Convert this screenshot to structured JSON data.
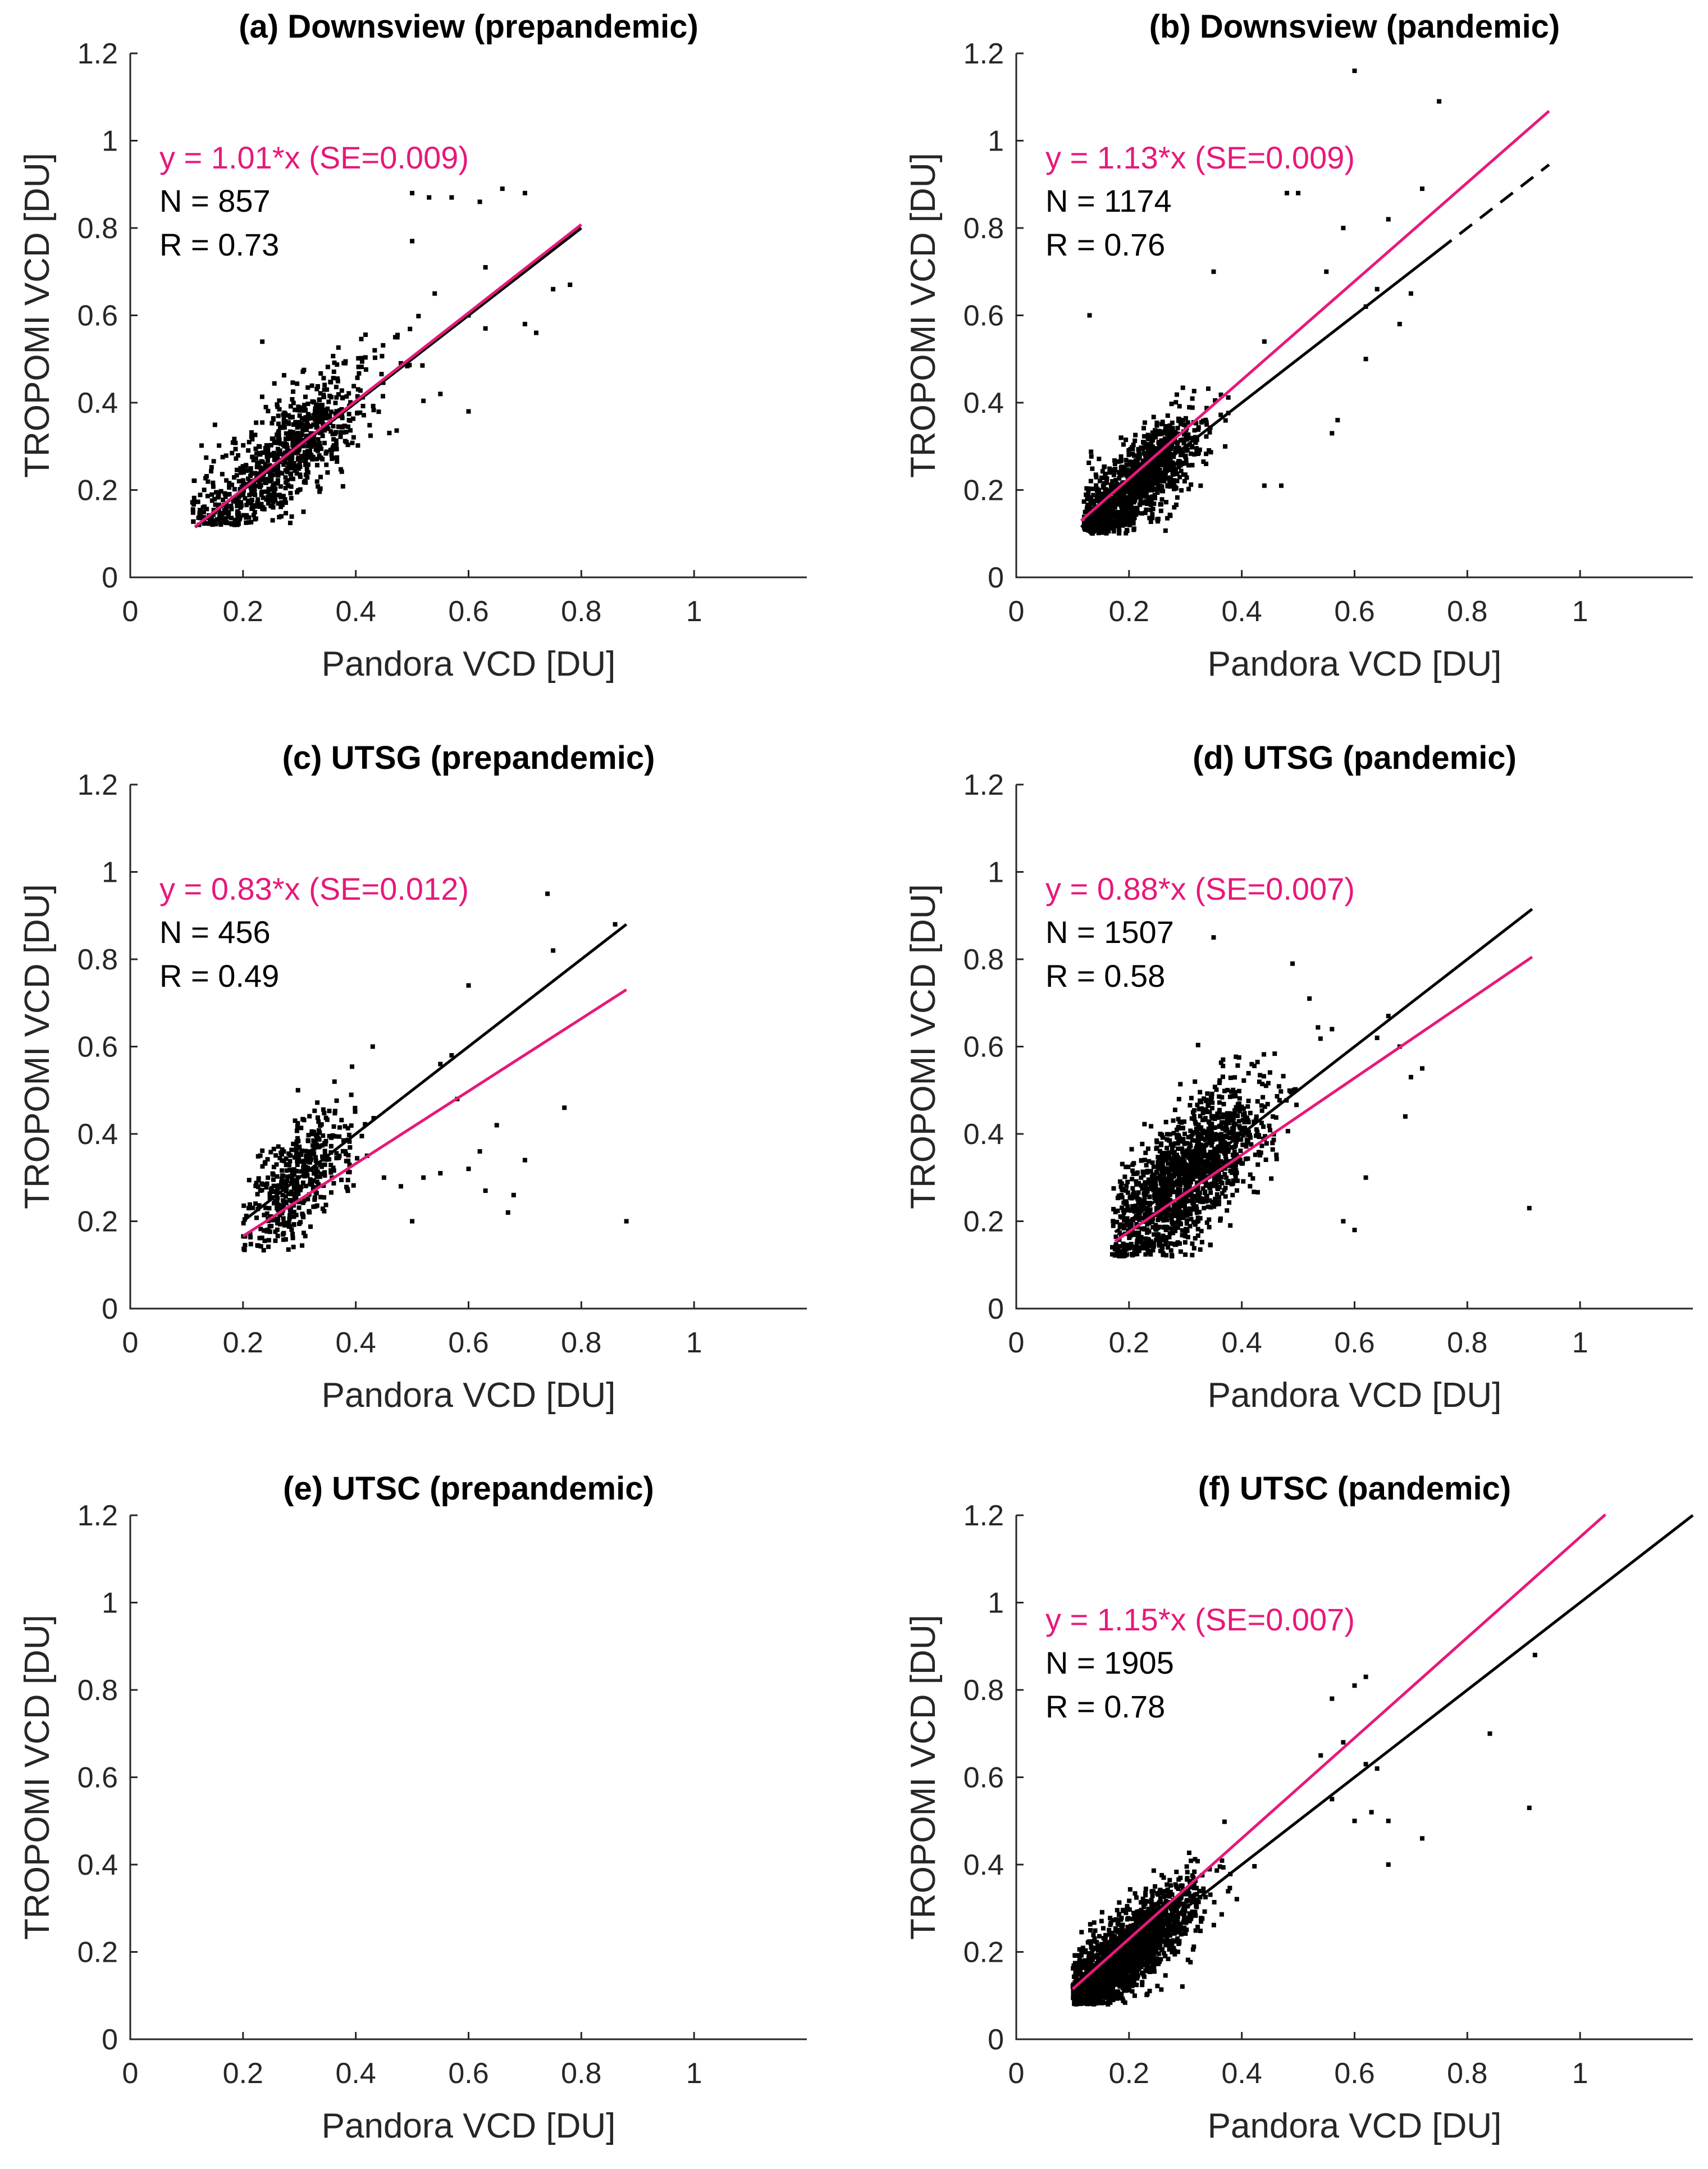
{
  "colors": {
    "fit": "#e6197a",
    "ref": "#000000",
    "points": "#000000",
    "axis": "#262626"
  },
  "chart_data": [
    {
      "type": "scatter",
      "title": "(a) Downsview (prepandemic)",
      "xlabel": "Pandora VCD [DU]",
      "ylabel": "TROPOMI VCD [DU]",
      "xlim": [
        0,
        1.2
      ],
      "ylim": [
        0,
        1.2
      ],
      "xticks": [
        0,
        0.2,
        0.4,
        0.6,
        0.8,
        1
      ],
      "xtick_labels": [
        "0",
        "0.2",
        "0.4",
        "0.6",
        "0.8",
        "1"
      ],
      "yticks": [
        0,
        0.2,
        0.4,
        0.6,
        0.8,
        1,
        1.2
      ],
      "ytick_labels": [
        "0",
        "0.2",
        "0.4",
        "0.6",
        "0.8",
        "1",
        "1.2"
      ],
      "annotations": {
        "equation": "y = 1.01*x (SE=0.009)",
        "n": "N = 857",
        "r": "R = 0.73"
      },
      "fit_line": {
        "slope": 1.01,
        "x": [
          0.115,
          0.8
        ]
      },
      "ref_line": {
        "slope": 1.0,
        "x": [
          0.115,
          0.8
        ],
        "dashed_x": null
      },
      "scatter_summary": {
        "n": 857,
        "x_center": 0.28,
        "x_spread": 0.08,
        "r": 0.73,
        "x_range": [
          0.11,
          0.8
        ],
        "y_range": [
          0.12,
          0.9
        ]
      },
      "outliers": [
        [
          0.5,
          0.88
        ],
        [
          0.53,
          0.87
        ],
        [
          0.57,
          0.87
        ],
        [
          0.62,
          0.86
        ],
        [
          0.66,
          0.89
        ],
        [
          0.7,
          0.88
        ],
        [
          0.5,
          0.77
        ],
        [
          0.63,
          0.71
        ],
        [
          0.6,
          0.6
        ],
        [
          0.63,
          0.57
        ],
        [
          0.7,
          0.58
        ],
        [
          0.75,
          0.66
        ],
        [
          0.6,
          0.38
        ],
        [
          0.55,
          0.42
        ],
        [
          0.72,
          0.56
        ],
        [
          0.78,
          0.67
        ],
        [
          0.54,
          0.65
        ],
        [
          0.47,
          0.55
        ]
      ]
    },
    {
      "type": "scatter",
      "title": "(b) Downsview (pandemic)",
      "xlabel": "Pandora VCD [DU]",
      "ylabel": "TROPOMI VCD [DU]",
      "xlim": [
        0,
        1.2
      ],
      "ylim": [
        0,
        1.2
      ],
      "xticks": [
        0,
        0.2,
        0.4,
        0.6,
        0.8,
        1
      ],
      "xtick_labels": [
        "0",
        "0.2",
        "0.4",
        "0.6",
        "0.8",
        "1"
      ],
      "yticks": [
        0,
        0.2,
        0.4,
        0.6,
        0.8,
        1,
        1.2
      ],
      "ytick_labels": [
        "0",
        "0.2",
        "0.4",
        "0.6",
        "0.8",
        "1",
        "1.2"
      ],
      "annotations": {
        "equation": "y = 1.13*x (SE=0.009)",
        "n": "N = 1174",
        "r": "R = 0.76"
      },
      "fit_line": {
        "slope": 1.13,
        "x": [
          0.115,
          0.945
        ]
      },
      "ref_line": {
        "slope": 1.0,
        "x": [
          0.115,
          0.945
        ],
        "dashed_x": [
          0.75,
          0.945
        ]
      },
      "scatter_summary": {
        "n": 1174,
        "x_center": 0.21,
        "x_spread": 0.06,
        "r": 0.76,
        "x_range": [
          0.12,
          0.75
        ],
        "y_range": [
          0.1,
          1.16
        ]
      },
      "outliers": [
        [
          0.6,
          1.16
        ],
        [
          0.75,
          1.09
        ],
        [
          0.48,
          0.88
        ],
        [
          0.5,
          0.88
        ],
        [
          0.58,
          0.8
        ],
        [
          0.66,
          0.82
        ],
        [
          0.72,
          0.89
        ],
        [
          0.7,
          0.65
        ],
        [
          0.68,
          0.58
        ],
        [
          0.62,
          0.62
        ],
        [
          0.55,
          0.7
        ],
        [
          0.44,
          0.54
        ],
        [
          0.57,
          0.36
        ],
        [
          0.56,
          0.33
        ],
        [
          0.47,
          0.21
        ],
        [
          0.44,
          0.21
        ],
        [
          0.13,
          0.6
        ],
        [
          0.35,
          0.7
        ],
        [
          0.62,
          0.5
        ],
        [
          0.64,
          0.66
        ]
      ]
    },
    {
      "type": "scatter",
      "title": "(c) UTSG (prepandemic)",
      "xlabel": "Pandora VCD [DU]",
      "ylabel": "TROPOMI VCD [DU]",
      "xlim": [
        0,
        1.2
      ],
      "ylim": [
        0,
        1.2
      ],
      "xticks": [
        0,
        0.2,
        0.4,
        0.6,
        0.8,
        1
      ],
      "xtick_labels": [
        "0",
        "0.2",
        "0.4",
        "0.6",
        "0.8",
        "1"
      ],
      "yticks": [
        0,
        0.2,
        0.4,
        0.6,
        0.8,
        1,
        1.2
      ],
      "ytick_labels": [
        "0",
        "0.2",
        "0.4",
        "0.6",
        "0.8",
        "1",
        "1.2"
      ],
      "annotations": {
        "equation": "y = 0.83*x (SE=0.012)",
        "n": "N = 456",
        "r": "R = 0.49"
      },
      "fit_line": {
        "slope": 0.83,
        "x": [
          0.2,
          0.88
        ]
      },
      "ref_line": {
        "slope": 1.0,
        "x": [
          0.2,
          0.88
        ],
        "dashed_x": null
      },
      "scatter_summary": {
        "n": 456,
        "x_center": 0.3,
        "x_spread": 0.05,
        "r": 0.49,
        "x_range": [
          0.2,
          0.88
        ],
        "y_range": [
          0.13,
          0.95
        ]
      },
      "outliers": [
        [
          0.74,
          0.95
        ],
        [
          0.75,
          0.82
        ],
        [
          0.6,
          0.74
        ],
        [
          0.86,
          0.88
        ],
        [
          0.88,
          0.2
        ],
        [
          0.77,
          0.46
        ],
        [
          0.55,
          0.56
        ],
        [
          0.57,
          0.58
        ],
        [
          0.45,
          0.3
        ],
        [
          0.48,
          0.28
        ],
        [
          0.5,
          0.2
        ],
        [
          0.55,
          0.31
        ],
        [
          0.6,
          0.32
        ],
        [
          0.63,
          0.27
        ],
        [
          0.65,
          0.42
        ],
        [
          0.68,
          0.26
        ],
        [
          0.7,
          0.34
        ],
        [
          0.67,
          0.22
        ],
        [
          0.42,
          0.35
        ],
        [
          0.43,
          0.6
        ],
        [
          0.58,
          0.48
        ],
        [
          0.62,
          0.36
        ],
        [
          0.52,
          0.3
        ]
      ]
    },
    {
      "type": "scatter",
      "title": "(d) UTSG (pandemic)",
      "xlabel": "Pandora VCD [DU]",
      "ylabel": "TROPOMI VCD [DU]",
      "xlim": [
        0,
        1.2
      ],
      "ylim": [
        0,
        1.2
      ],
      "xticks": [
        0,
        0.2,
        0.4,
        0.6,
        0.8,
        1
      ],
      "xtick_labels": [
        "0",
        "0.2",
        "0.4",
        "0.6",
        "0.8",
        "1"
      ],
      "yticks": [
        0,
        0.2,
        0.4,
        0.6,
        0.8,
        1,
        1.2
      ],
      "ytick_labels": [
        "0",
        "0.2",
        "0.4",
        "0.6",
        "0.8",
        "1",
        "1.2"
      ],
      "annotations": {
        "equation": "y = 0.88*x (SE=0.007)",
        "n": "N = 1507",
        "r": "R = 0.58"
      },
      "fit_line": {
        "slope": 0.88,
        "x": [
          0.175,
          0.915
        ]
      },
      "ref_line": {
        "slope": 1.0,
        "x": [
          0.175,
          0.915
        ],
        "dashed_x": null
      },
      "scatter_summary": {
        "n": 1507,
        "x_center": 0.3,
        "x_spread": 0.07,
        "r": 0.58,
        "x_range": [
          0.17,
          0.75
        ],
        "y_range": [
          0.12,
          0.85
        ]
      },
      "outliers": [
        [
          0.35,
          0.85
        ],
        [
          0.49,
          0.79
        ],
        [
          0.91,
          0.23
        ],
        [
          0.72,
          0.55
        ],
        [
          0.7,
          0.53
        ],
        [
          0.68,
          0.6
        ],
        [
          0.66,
          0.67
        ],
        [
          0.69,
          0.44
        ],
        [
          0.6,
          0.18
        ],
        [
          0.58,
          0.2
        ],
        [
          0.62,
          0.3
        ],
        [
          0.64,
          0.62
        ],
        [
          0.56,
          0.64
        ],
        [
          0.52,
          0.71
        ]
      ]
    },
    {
      "type": "scatter",
      "title": "(e) UTSC (prepandemic)",
      "xlabel": "Pandora VCD [DU]",
      "ylabel": "TROPOMI VCD [DU]",
      "xlim": [
        0,
        1.2
      ],
      "ylim": [
        0,
        1.2
      ],
      "xticks": [
        0,
        0.2,
        0.4,
        0.6,
        0.8,
        1
      ],
      "xtick_labels": [
        "0",
        "0.2",
        "0.4",
        "0.6",
        "0.8",
        "1"
      ],
      "yticks": [
        0,
        0.2,
        0.4,
        0.6,
        0.8,
        1,
        1.2
      ],
      "ytick_labels": [
        "0",
        "0.2",
        "0.4",
        "0.6",
        "0.8",
        "1",
        "1.2"
      ],
      "annotations": {
        "equation": "",
        "n": "",
        "r": ""
      },
      "fit_line": null,
      "ref_line": null,
      "scatter_summary": null,
      "outliers": []
    },
    {
      "type": "scatter",
      "title": "(f) UTSC (pandemic)",
      "xlabel": "Pandora VCD [DU]",
      "ylabel": "TROPOMI VCD [DU]",
      "xlim": [
        0,
        1.2
      ],
      "ylim": [
        0,
        1.2
      ],
      "xticks": [
        0,
        0.2,
        0.4,
        0.6,
        0.8,
        1
      ],
      "xtick_labels": [
        "0",
        "0.2",
        "0.4",
        "0.6",
        "0.8",
        "1"
      ],
      "yticks": [
        0,
        0.2,
        0.4,
        0.6,
        0.8,
        1,
        1.2
      ],
      "ytick_labels": [
        "0",
        "0.2",
        "0.4",
        "0.6",
        "0.8",
        "1",
        "1.2"
      ],
      "annotations": {
        "equation": "y = 1.15*x (SE=0.007)",
        "n": "N = 1905",
        "r": "R = 0.78"
      },
      "fit_line": {
        "slope": 1.15,
        "x": [
          0.1,
          1.045
        ]
      },
      "ref_line": {
        "slope": 1.0,
        "x": [
          0.1,
          1.2
        ],
        "dashed_x": null
      },
      "scatter_summary": {
        "n": 1905,
        "x_center": 0.2,
        "x_spread": 0.06,
        "r": 0.78,
        "x_range": [
          0.1,
          0.92
        ],
        "y_range": [
          0.08,
          0.88
        ]
      },
      "outliers": [
        [
          0.92,
          0.88
        ],
        [
          0.91,
          0.53
        ],
        [
          0.84,
          0.7
        ],
        [
          0.72,
          0.46
        ],
        [
          0.66,
          0.5
        ],
        [
          0.62,
          0.83
        ],
        [
          0.6,
          0.81
        ],
        [
          0.56,
          0.78
        ],
        [
          0.58,
          0.68
        ],
        [
          0.62,
          0.63
        ],
        [
          0.64,
          0.62
        ],
        [
          0.66,
          0.4
        ],
        [
          0.63,
          0.52
        ],
        [
          0.6,
          0.5
        ],
        [
          0.56,
          0.55
        ],
        [
          0.54,
          0.65
        ]
      ]
    }
  ]
}
